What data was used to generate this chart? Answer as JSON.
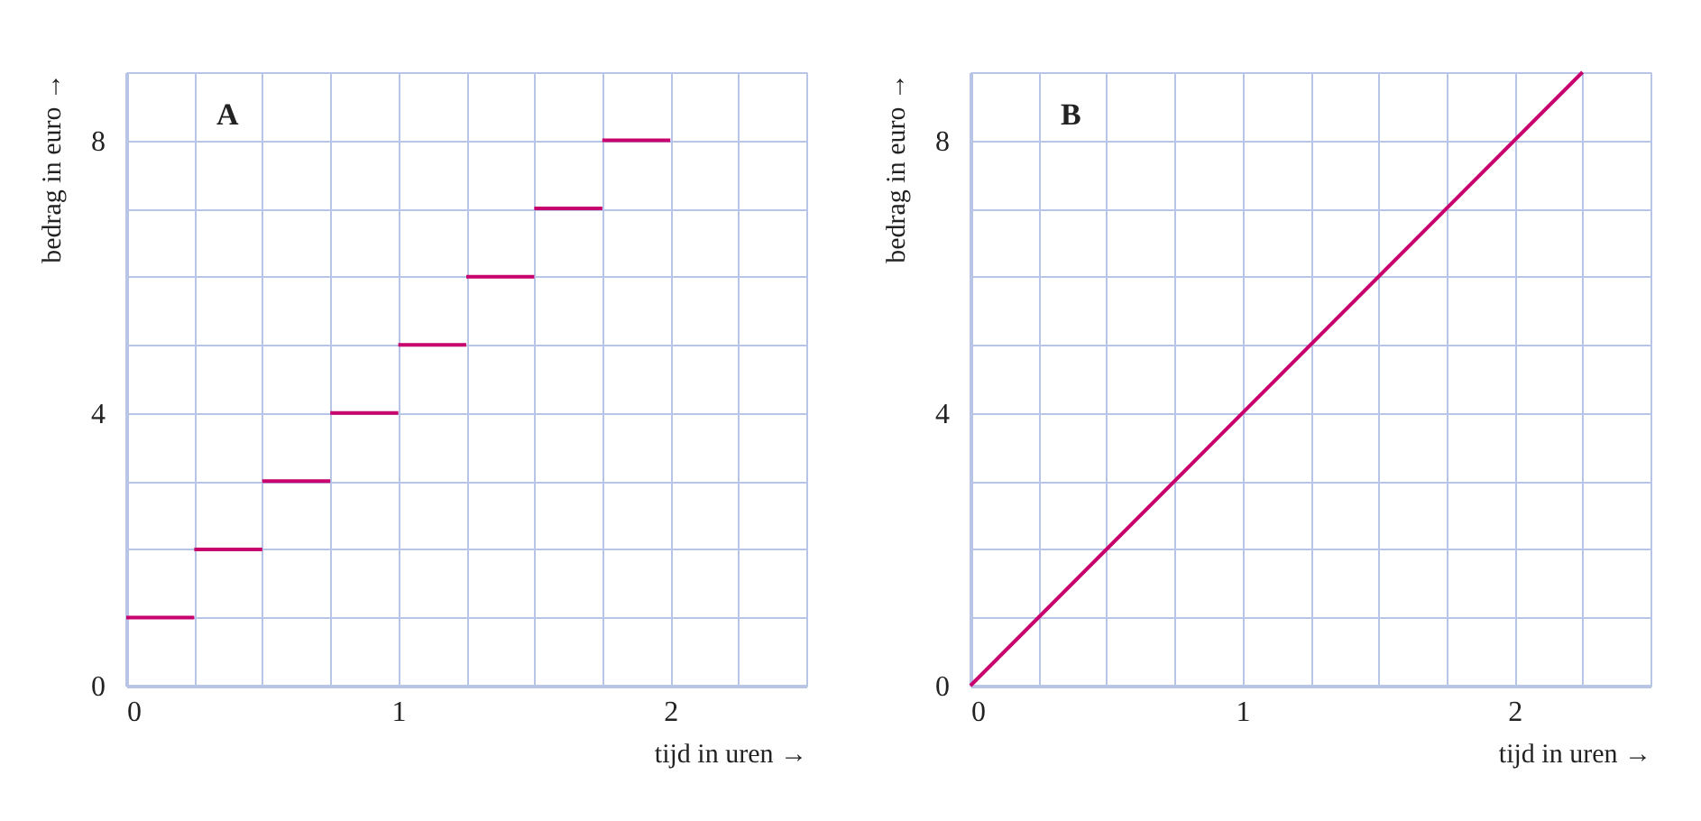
{
  "chart_data": [
    {
      "type": "line",
      "xlabel": "tijd in uren →",
      "ylabel": "bedrag in euro →",
      "annotations": [
        "A"
      ],
      "xlim": [
        0,
        2.5
      ],
      "ylim": [
        0,
        9
      ],
      "xticks": [
        0,
        {
          "value": 0.25,
          "label": null
        },
        {
          "value": 0.5,
          "label": null
        },
        {
          "value": 0.75,
          "label": null
        },
        1,
        {
          "value": 1.25,
          "label": null
        },
        {
          "value": 1.5,
          "label": null
        },
        {
          "value": 1.75,
          "label": null
        },
        2,
        {
          "value": 2.25,
          "label": null
        },
        {
          "value": 2.5,
          "label": null
        }
      ],
      "yticks": [
        0,
        {
          "value": 1,
          "label": null
        },
        {
          "value": 2,
          "label": null
        },
        {
          "value": 3,
          "label": null
        },
        4,
        {
          "value": 5,
          "label": null
        },
        {
          "value": 6,
          "label": null
        },
        {
          "value": 7,
          "label": null
        },
        8,
        {
          "value": 9,
          "label": null
        }
      ],
      "grid": true,
      "marker": "none",
      "line_style": "solid",
      "series": [
        {
          "color": "#c8006e",
          "x": [
            0,
            0.25
          ],
          "values": [
            1,
            1
          ]
        },
        {
          "color": "#c8006e",
          "x": [
            0.25,
            0.5
          ],
          "values": [
            2,
            2
          ]
        },
        {
          "color": "#c8006e",
          "x": [
            0.5,
            0.75
          ],
          "values": [
            3,
            3
          ]
        },
        {
          "color": "#c8006e",
          "x": [
            0.75,
            1
          ],
          "values": [
            4,
            4
          ]
        },
        {
          "color": "#c8006e",
          "x": [
            1,
            1.25
          ],
          "values": [
            5,
            5
          ]
        },
        {
          "color": "#c8006e",
          "x": [
            1.25,
            1.5
          ],
          "values": [
            6,
            6
          ]
        },
        {
          "color": "#c8006e",
          "x": [
            1.5,
            1.75
          ],
          "values": [
            7,
            7
          ]
        },
        {
          "color": "#c8006e",
          "x": [
            1.75,
            2
          ],
          "values": [
            8,
            8
          ]
        }
      ]
    },
    {
      "type": "line",
      "xlabel": "tijd in uren →",
      "ylabel": "bedrag in euro →",
      "annotations": [
        "B"
      ],
      "xlim": [
        0,
        2.5
      ],
      "ylim": [
        0,
        9
      ],
      "xticks": [
        0,
        {
          "value": 0.25,
          "label": null
        },
        {
          "value": 0.5,
          "label": null
        },
        {
          "value": 0.75,
          "label": null
        },
        1,
        {
          "value": 1.25,
          "label": null
        },
        {
          "value": 1.5,
          "label": null
        },
        {
          "value": 1.75,
          "label": null
        },
        2,
        {
          "value": 2.25,
          "label": null
        },
        {
          "value": 2.5,
          "label": null
        }
      ],
      "yticks": [
        0,
        {
          "value": 1,
          "label": null
        },
        {
          "value": 2,
          "label": null
        },
        {
          "value": 3,
          "label": null
        },
        4,
        {
          "value": 5,
          "label": null
        },
        {
          "value": 6,
          "label": null
        },
        {
          "value": 7,
          "label": null
        },
        8,
        {
          "value": 9,
          "label": null
        }
      ],
      "grid": true,
      "marker": "none",
      "line_style": "solid",
      "series": [
        {
          "color": "#c8006e",
          "x": [
            0,
            2.25
          ],
          "values": [
            0,
            9
          ]
        }
      ]
    }
  ]
}
